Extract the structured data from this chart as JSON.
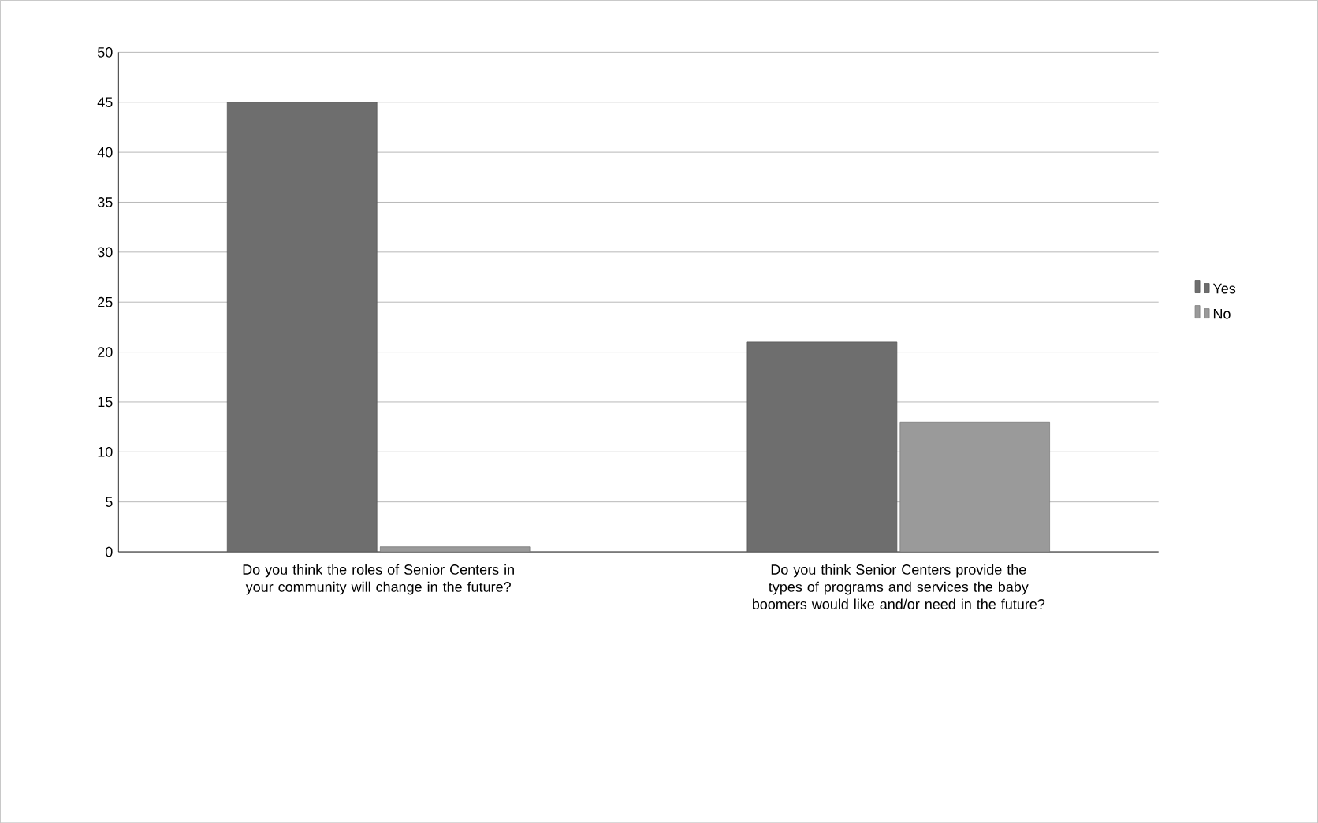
{
  "chart_data": {
    "type": "bar",
    "categories": [
      "Do you think the roles of Senior Centers in your community will change in the future?",
      "Do you think Senior Centers provide the types of programs and services the baby boomers would like and/or need in the future?"
    ],
    "series": [
      {
        "name": "Yes",
        "color": "#6e6e6e",
        "values": [
          45,
          21
        ]
      },
      {
        "name": "No",
        "color": "#9a9a9a",
        "values": [
          0.5,
          13
        ]
      }
    ],
    "ylim": [
      0,
      50
    ],
    "yticks": [
      0,
      5,
      10,
      15,
      20,
      25,
      30,
      35,
      40,
      45,
      50
    ],
    "grid": "y",
    "legend": "right"
  }
}
